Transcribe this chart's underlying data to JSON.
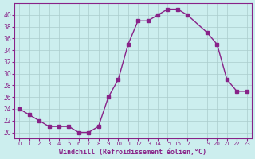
{
  "x": [
    0,
    1,
    2,
    3,
    4,
    5,
    6,
    7,
    8,
    9,
    10,
    11,
    12,
    13,
    14,
    15,
    16,
    17,
    19,
    20,
    21,
    22,
    23
  ],
  "y": [
    24,
    23,
    22,
    21,
    21,
    21,
    20,
    20,
    21,
    26,
    29,
    35,
    39,
    39,
    40,
    41,
    41,
    40,
    37,
    35,
    29,
    27,
    27
  ],
  "line_color": "#882288",
  "marker_color": "#882288",
  "bg_color": "#cceeee",
  "grid_color": "#aacccc",
  "xlabel": "Windchill (Refroidissement éolien,°C)",
  "xlabel_color": "#882288",
  "tick_color": "#882288",
  "ylim": [
    19,
    42
  ],
  "xlim": [
    -0.5,
    23.5
  ],
  "yticks": [
    20,
    22,
    24,
    26,
    28,
    30,
    32,
    34,
    36,
    38,
    40
  ],
  "xticks": [
    0,
    1,
    2,
    3,
    4,
    5,
    6,
    7,
    8,
    9,
    10,
    11,
    12,
    13,
    14,
    15,
    16,
    17,
    19,
    20,
    21,
    22,
    23
  ],
  "xtick_labels": [
    "0",
    "1",
    "2",
    "3",
    "4",
    "5",
    "6",
    "7",
    "8",
    "9",
    "10",
    "11",
    "12",
    "13",
    "14",
    "15",
    "16",
    "17",
    "19",
    "20",
    "21",
    "22",
    "23"
  ]
}
